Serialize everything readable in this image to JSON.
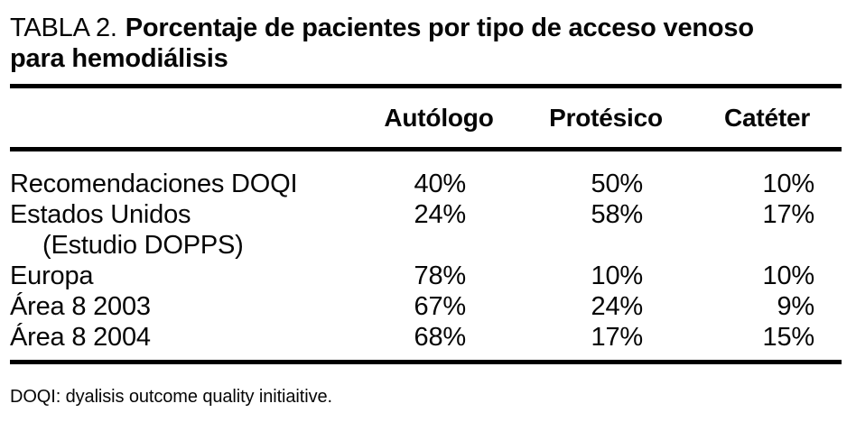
{
  "title": {
    "label": "TABLA 2.",
    "text_line1": "Porcentaje de pacientes por tipo de acceso venoso",
    "text_line2": "para hemodiálisis"
  },
  "table": {
    "column_headers": [
      "Autólogo",
      "Protésico",
      "Catéter"
    ],
    "rows": [
      {
        "label": "Recomendaciones DOQI",
        "label_sub": "",
        "autologo": "40%",
        "protesico": "50%",
        "cateter": "10%"
      },
      {
        "label": "Estados Unidos",
        "label_sub": "(Estudio DOPPS)",
        "autologo": "24%",
        "protesico": "58%",
        "cateter": "17%"
      },
      {
        "label": "Europa",
        "label_sub": "",
        "autologo": "78%",
        "protesico": "10%",
        "cateter": "10%"
      },
      {
        "label": "Área 8 2003",
        "label_sub": "",
        "autologo": "67%",
        "protesico": "24%",
        "cateter": "9%"
      },
      {
        "label": "Área 8 2004",
        "label_sub": "",
        "autologo": "68%",
        "protesico": "17%",
        "cateter": "15%"
      }
    ]
  },
  "footnote": "DOQI: dyalisis outcome quality initiaitive.",
  "colors": {
    "text": "#060606",
    "rule": "#000000",
    "background": "#ffffff"
  }
}
